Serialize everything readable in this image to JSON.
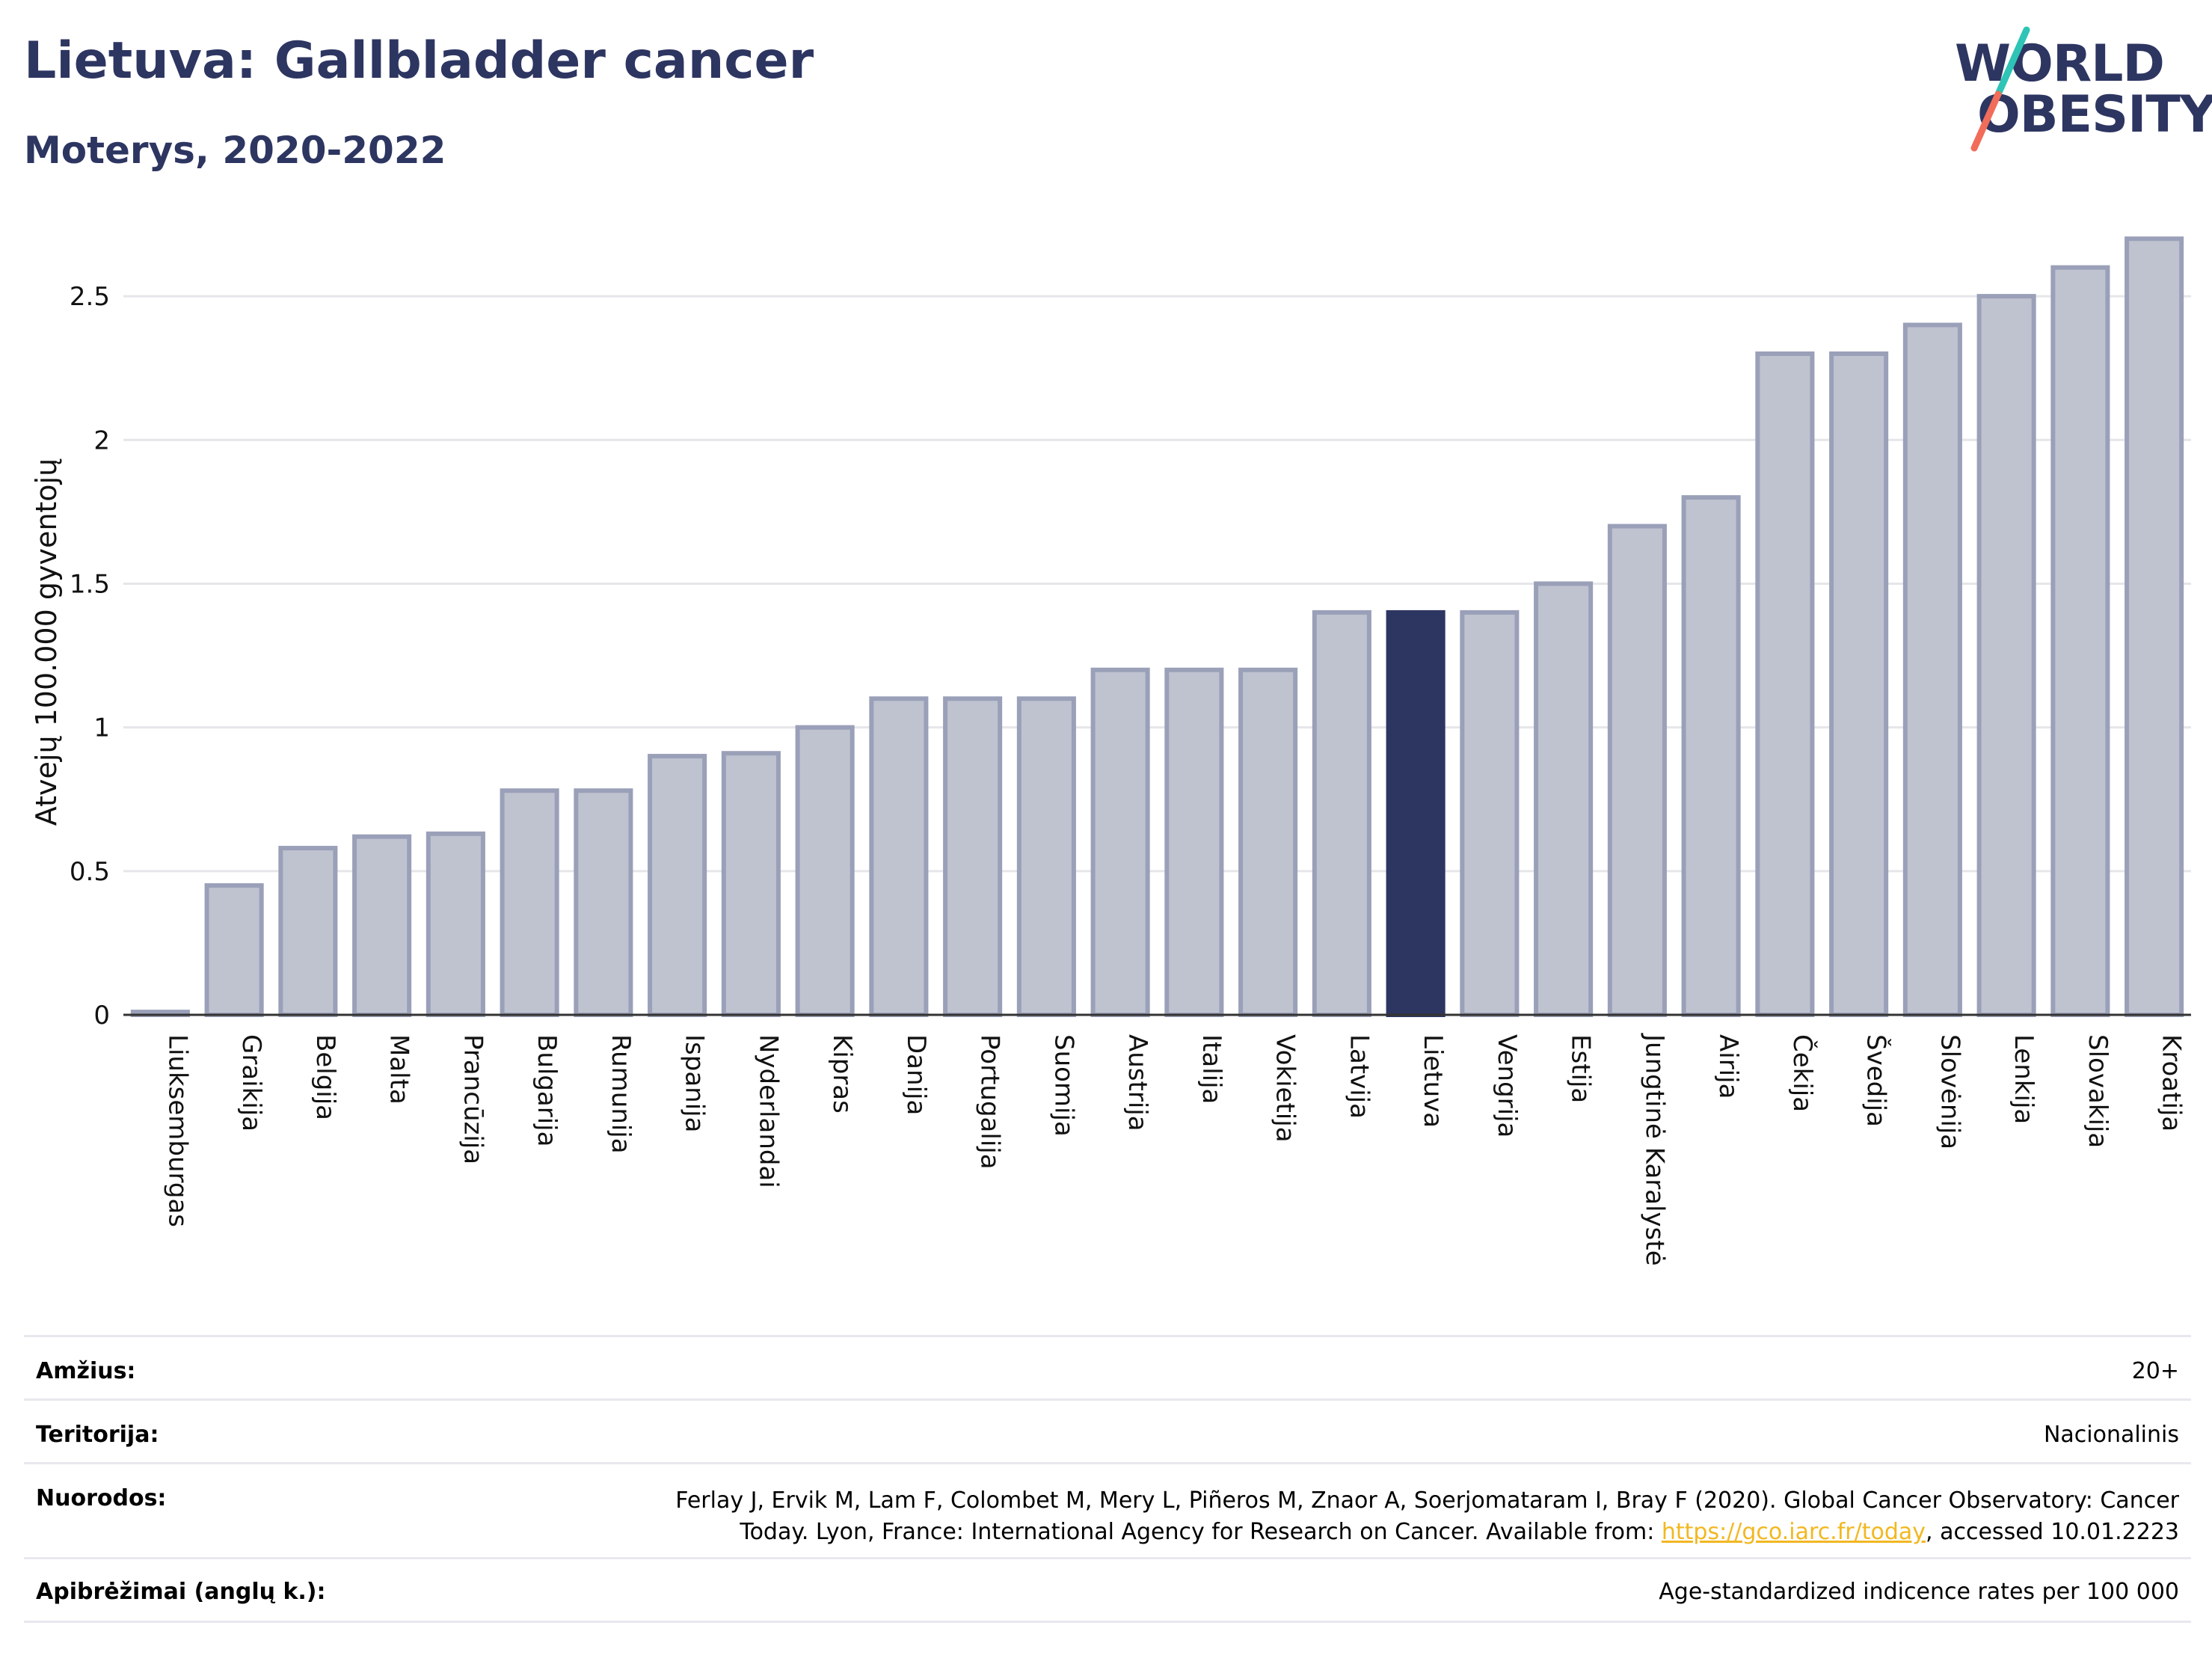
{
  "header": {
    "title": "Lietuva: Gallbladder cancer",
    "subtitle": "Moterys, 2020-2022"
  },
  "logo": {
    "line1": "WORLD",
    "line2": "OBESITY",
    "accent_colors": [
      "#2ec4b6",
      "#f26c5a"
    ]
  },
  "chart_data": {
    "type": "bar",
    "ylabel": "Atvejų 100.000 gyventojų",
    "ylim": [
      0,
      2.75
    ],
    "yticks": [
      {
        "value": 0,
        "label": "0"
      },
      {
        "value": 0.5,
        "label": "0.5"
      },
      {
        "value": 1,
        "label": "1"
      },
      {
        "value": 1.5,
        "label": "1.5"
      },
      {
        "value": 2,
        "label": "2"
      },
      {
        "value": 2.5,
        "label": "2.5"
      }
    ],
    "grid": true,
    "highlight": "Lietuva",
    "colors": {
      "bar": "#bfc3d0",
      "bar_edge": "#9aa0b8",
      "highlight": "#2d3561"
    },
    "categories": [
      "Liuksemburgas",
      "Graikija",
      "Belgija",
      "Malta",
      "Prancūzija",
      "Bulgarija",
      "Rumunija",
      "Ispanija",
      "Nyderlandai",
      "Kipras",
      "Danija",
      "Portugalija",
      "Suomija",
      "Austrija",
      "Italija",
      "Vokietija",
      "Latvija",
      "Lietuva",
      "Vengrija",
      "Estija",
      "Jungtinė Karalystė",
      "Airija",
      "Čekija",
      "Švedija",
      "Slovėnija",
      "Lenkija",
      "Slovakija",
      "Kroatija"
    ],
    "values": [
      0.01,
      0.45,
      0.58,
      0.62,
      0.63,
      0.78,
      0.78,
      0.9,
      0.91,
      1.0,
      1.1,
      1.1,
      1.1,
      1.2,
      1.2,
      1.2,
      1.4,
      1.4,
      1.4,
      1.5,
      1.7,
      1.8,
      2.3,
      2.3,
      2.4,
      2.5,
      2.6,
      2.7
    ]
  },
  "meta": {
    "age_label": "Amžius:",
    "age_value": "20+",
    "territory_label": "Teritorija:",
    "territory_value": "Nacionalinis",
    "refs_label": "Nuorodos:",
    "refs_line1": "Ferlay J, Ervik M, Lam F, Colombet M, Mery L, Piñeros M, Znaor A, Soerjomataram I, Bray F (2020). Global Cancer Observatory: Cancer",
    "refs_line2_pre": "Today. Lyon, France: International Agency for Research on Cancer. Available from: ",
    "refs_link": "https://gco.iarc.fr/today",
    "refs_line2_post": ", accessed 10.01.2223",
    "defs_label": "Apibrėžimai (anglų k.):",
    "defs_value": "Age-standardized indicence rates per 100 000"
  }
}
